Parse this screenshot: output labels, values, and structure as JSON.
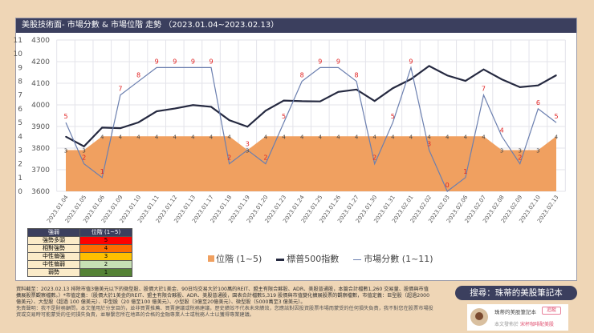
{
  "title": "美股技術面- 市場分數 & 市場位階 走勢 （2023.01.04~2023.02.13）",
  "chart_data": {
    "type": "line",
    "categories": [
      "2023.01.04",
      "2023.01.05",
      "2023.01.06",
      "2023.01.09",
      "2023.01.10",
      "2023.01.11",
      "2023.01.12",
      "2023.01.13",
      "2023.01.17",
      "2023.01.18",
      "2023.01.19",
      "2023.01.20",
      "2023.01.23",
      "2023.01.24",
      "2023.01.25",
      "2023.01.26",
      "2023.01.27",
      "2023.01.30",
      "2023.01.31",
      "2023.02.01",
      "2023.02.02",
      "2023.02.03",
      "2023.02.06",
      "2023.02.07",
      "2023.02.08",
      "2023.02.09",
      "2023.02.10",
      "2023.02.13"
    ],
    "series": [
      {
        "name": "位階 (1~5)",
        "type": "area",
        "axis": "left",
        "color": "#F0A060",
        "values": [
          3,
          3,
          4,
          4,
          4,
          4,
          4,
          4,
          4,
          4,
          3,
          4,
          4,
          4,
          4,
          4,
          4,
          4,
          4,
          4,
          4,
          4,
          4,
          4,
          3,
          3,
          3,
          4
        ]
      },
      {
        "name": "標普500指數",
        "type": "line",
        "axis": "secondary",
        "color": "#252940",
        "values": [
          3853,
          3808,
          3895,
          3892,
          3919,
          3970,
          3983,
          3999,
          3991,
          3929,
          3899,
          3973,
          4020,
          4017,
          4016,
          4060,
          4071,
          4018,
          4077,
          4119,
          4180,
          4136,
          4111,
          4164,
          4118,
          4082,
          4090,
          4137
        ]
      },
      {
        "name": "市場分數 (1~11)",
        "type": "line",
        "axis": "left",
        "color": "#6B7FAF",
        "values": [
          5,
          2,
          1,
          7,
          8,
          9,
          9,
          9,
          9,
          2,
          3,
          2,
          5,
          8,
          9,
          9,
          8,
          2,
          5,
          9,
          3,
          0,
          1,
          7,
          4,
          2,
          6,
          5
        ]
      }
    ],
    "left_axis": {
      "min": 0,
      "max": 11,
      "ticks": [
        "0",
        "1",
        "2",
        "3",
        "4",
        "5",
        "6",
        "7",
        "8",
        "9",
        "10",
        "11"
      ]
    },
    "secondary_axis": {
      "min": 3600,
      "max": 4300,
      "ticks": [
        "3600",
        "3700",
        "3800",
        "3900",
        "4000",
        "4100",
        "4200",
        "4300"
      ]
    },
    "grid": true,
    "legend": "bottom"
  },
  "legend_table": {
    "headers": [
      "強弱",
      "位階 (1~5)"
    ],
    "rows": [
      {
        "label": "強勢多頭",
        "value": "5",
        "color": "#FF0000"
      },
      {
        "label": "相對強勢",
        "value": "4",
        "color": "#FF6A00"
      },
      {
        "label": "中性偏強",
        "value": "3",
        "color": "#FFC000"
      },
      {
        "label": "中性偏弱",
        "value": "2",
        "color": "#C6E0B4"
      },
      {
        "label": "弱勢",
        "value": "1",
        "color": "#548235"
      }
    ]
  },
  "footer": {
    "note": "資料截至：2023.02.13 排除市值3億美元以下的微型股、股價大於1美金、90日均交易大於100萬的REIT、盟主有限合夥股、ADR、美股普通股，本篇合計檔數1,260 交易量、股價與市值擴展股票觀察檔數。）*市值定義：（股價大於1美金的REIT、盟主有限合夥股、ADR、美股普通股，園表合計檔數5,319 股價與市值變化擴展股票的觀察檔數，市值定義：巨型股（超過2000億美元）、大型股（超過 100 億美元）、中型股（20 億至100 億美元）、小型股（3億至20億美元）、微型股（5000萬至3 億美元）。",
    "disclaimer": "免責聲明：我不是財務顧問，本文僅用於分享目的，並非買賣推薦、買賣建議或稅務建議，歷史績效不代表未來績效，您應該對因投資股票市場而蒙受的任何損失負責，我不對您在股票市場投資或交易時可能蒙受的任何損失負責，並聯繫您所在地區的合格的金融專業人士或稅務人士以獲得專業建議。"
  },
  "search": "搜尋：珠蒂的美股筆記本",
  "card": {
    "name": "珠蒂的美股筆記本",
    "follow": "追蹤",
    "published_prefix": "本文發佈於",
    "published_where": "宋杯咖啡配美股"
  }
}
